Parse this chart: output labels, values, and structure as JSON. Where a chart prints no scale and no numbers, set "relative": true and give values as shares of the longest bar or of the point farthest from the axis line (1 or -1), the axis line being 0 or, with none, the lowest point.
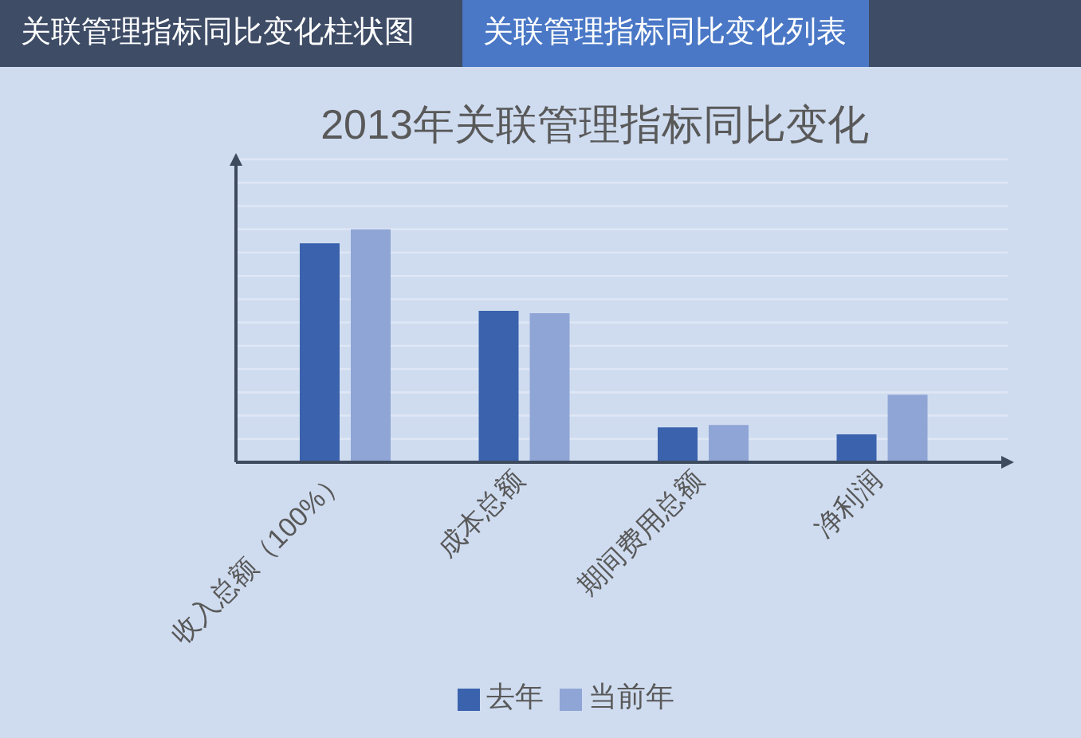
{
  "chart_data": {
    "type": "bar",
    "title": "2013年关联管理指标同比变化",
    "annotations": [
      "关联管理指标同比变化柱状图",
      "关联管理指标同比变化列表"
    ],
    "categories": [
      "收入总额（100%）",
      "成本总额",
      "期间费用总额",
      "净利润"
    ],
    "series": [
      {
        "name": "去年",
        "color": "#3a62ad",
        "values": [
          0.94,
          0.65,
          0.15,
          0.12
        ]
      },
      {
        "name": "当前年",
        "color": "#8fa5d6",
        "values": [
          1,
          0.64,
          0.16,
          0.29
        ]
      }
    ],
    "relative": true,
    "grid": "y",
    "legend": "bottom"
  }
}
